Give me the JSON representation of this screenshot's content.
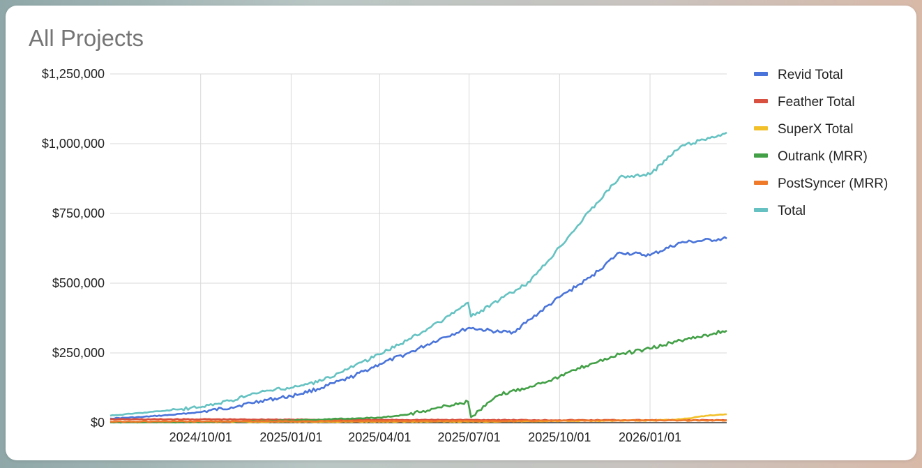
{
  "chart_data": {
    "type": "line",
    "title": "All Projects",
    "xlabel": "",
    "ylabel": "",
    "x_range": [
      "2024-07-01",
      "2026-03-20"
    ],
    "ylim": [
      0,
      1250000
    ],
    "grid": true,
    "legend_position": "right",
    "x_ticks": [
      "2024/10/01",
      "2025/01/01",
      "2025/04/01",
      "2025/07/01",
      "2025/10/01",
      "2026/01/01"
    ],
    "x_tick_dates": [
      "2024-10-01",
      "2025-01-01",
      "2025-04-01",
      "2025-07-01",
      "2025-10-01",
      "2026-01-01"
    ],
    "y_ticks": [
      "$0",
      "$250,000",
      "$500,000",
      "$750,000",
      "$1,000,000",
      "$1,250,000"
    ],
    "y_tick_values": [
      0,
      250000,
      500000,
      750000,
      1000000,
      1250000
    ],
    "series": [
      {
        "name": "Revid Total",
        "color": "#4a74d9",
        "points": [
          [
            "2024-07-01",
            15000
          ],
          [
            "2024-08-01",
            20000
          ],
          [
            "2024-09-01",
            28000
          ],
          [
            "2024-10-01",
            38000
          ],
          [
            "2024-11-01",
            55000
          ],
          [
            "2024-12-01",
            78000
          ],
          [
            "2025-01-01",
            95000
          ],
          [
            "2025-02-01",
            125000
          ],
          [
            "2025-03-01",
            160000
          ],
          [
            "2025-04-01",
            210000
          ],
          [
            "2025-05-01",
            250000
          ],
          [
            "2025-06-01",
            300000
          ],
          [
            "2025-07-01",
            340000
          ],
          [
            "2025-08-01",
            325000
          ],
          [
            "2025-08-15",
            325000
          ],
          [
            "2025-09-01",
            370000
          ],
          [
            "2025-10-01",
            450000
          ],
          [
            "2025-11-01",
            520000
          ],
          [
            "2025-12-01",
            610000
          ],
          [
            "2026-01-01",
            600000
          ],
          [
            "2026-02-01",
            645000
          ],
          [
            "2026-03-20",
            660000
          ]
        ]
      },
      {
        "name": "Feather Total",
        "color": "#d8503f",
        "points": [
          [
            "2024-07-01",
            12000
          ],
          [
            "2024-10-01",
            12000
          ],
          [
            "2025-01-01",
            11000
          ],
          [
            "2025-04-01",
            10000
          ],
          [
            "2025-07-01",
            10000
          ],
          [
            "2025-10-01",
            9000
          ],
          [
            "2026-01-01",
            9000
          ],
          [
            "2026-03-20",
            9000
          ]
        ]
      },
      {
        "name": "SuperX Total",
        "color": "#f2c029",
        "points": [
          [
            "2024-07-01",
            2000
          ],
          [
            "2025-01-01",
            3000
          ],
          [
            "2025-07-01",
            4000
          ],
          [
            "2025-10-01",
            6000
          ],
          [
            "2026-01-01",
            8000
          ],
          [
            "2026-02-01",
            12000
          ],
          [
            "2026-03-01",
            25000
          ],
          [
            "2026-03-20",
            30000
          ]
        ]
      },
      {
        "name": "Outrank (MRR)",
        "color": "#43a047",
        "points": [
          [
            "2024-07-01",
            1000
          ],
          [
            "2024-10-01",
            2000
          ],
          [
            "2025-01-01",
            8000
          ],
          [
            "2025-04-01",
            18000
          ],
          [
            "2025-05-01",
            30000
          ],
          [
            "2025-06-01",
            55000
          ],
          [
            "2025-06-30",
            75000
          ],
          [
            "2025-07-03",
            20000
          ],
          [
            "2025-08-01",
            100000
          ],
          [
            "2025-09-01",
            130000
          ],
          [
            "2025-10-01",
            165000
          ],
          [
            "2025-11-01",
            210000
          ],
          [
            "2025-12-01",
            245000
          ],
          [
            "2026-01-01",
            265000
          ],
          [
            "2026-02-01",
            295000
          ],
          [
            "2026-03-20",
            330000
          ]
        ]
      },
      {
        "name": "PostSyncer (MRR)",
        "color": "#ef7a2a",
        "points": [
          [
            "2024-07-01",
            4000
          ],
          [
            "2025-01-01",
            5000
          ],
          [
            "2025-07-01",
            6000
          ],
          [
            "2025-10-01",
            7000
          ],
          [
            "2026-01-01",
            8000
          ],
          [
            "2026-03-20",
            8000
          ]
        ]
      },
      {
        "name": "Total",
        "color": "#66c2c2",
        "points": [
          [
            "2024-07-01",
            25000
          ],
          [
            "2024-08-01",
            35000
          ],
          [
            "2024-09-01",
            45000
          ],
          [
            "2024-10-01",
            55000
          ],
          [
            "2024-11-01",
            80000
          ],
          [
            "2024-12-01",
            110000
          ],
          [
            "2025-01-01",
            125000
          ],
          [
            "2025-02-01",
            150000
          ],
          [
            "2025-03-01",
            195000
          ],
          [
            "2025-04-01",
            245000
          ],
          [
            "2025-05-01",
            300000
          ],
          [
            "2025-06-01",
            360000
          ],
          [
            "2025-06-30",
            430000
          ],
          [
            "2025-07-03",
            380000
          ],
          [
            "2025-08-01",
            440000
          ],
          [
            "2025-09-01",
            505000
          ],
          [
            "2025-10-01",
            630000
          ],
          [
            "2025-11-01",
            760000
          ],
          [
            "2025-12-01",
            880000
          ],
          [
            "2026-01-01",
            890000
          ],
          [
            "2026-02-01",
            990000
          ],
          [
            "2026-03-20",
            1040000
          ]
        ]
      }
    ]
  }
}
